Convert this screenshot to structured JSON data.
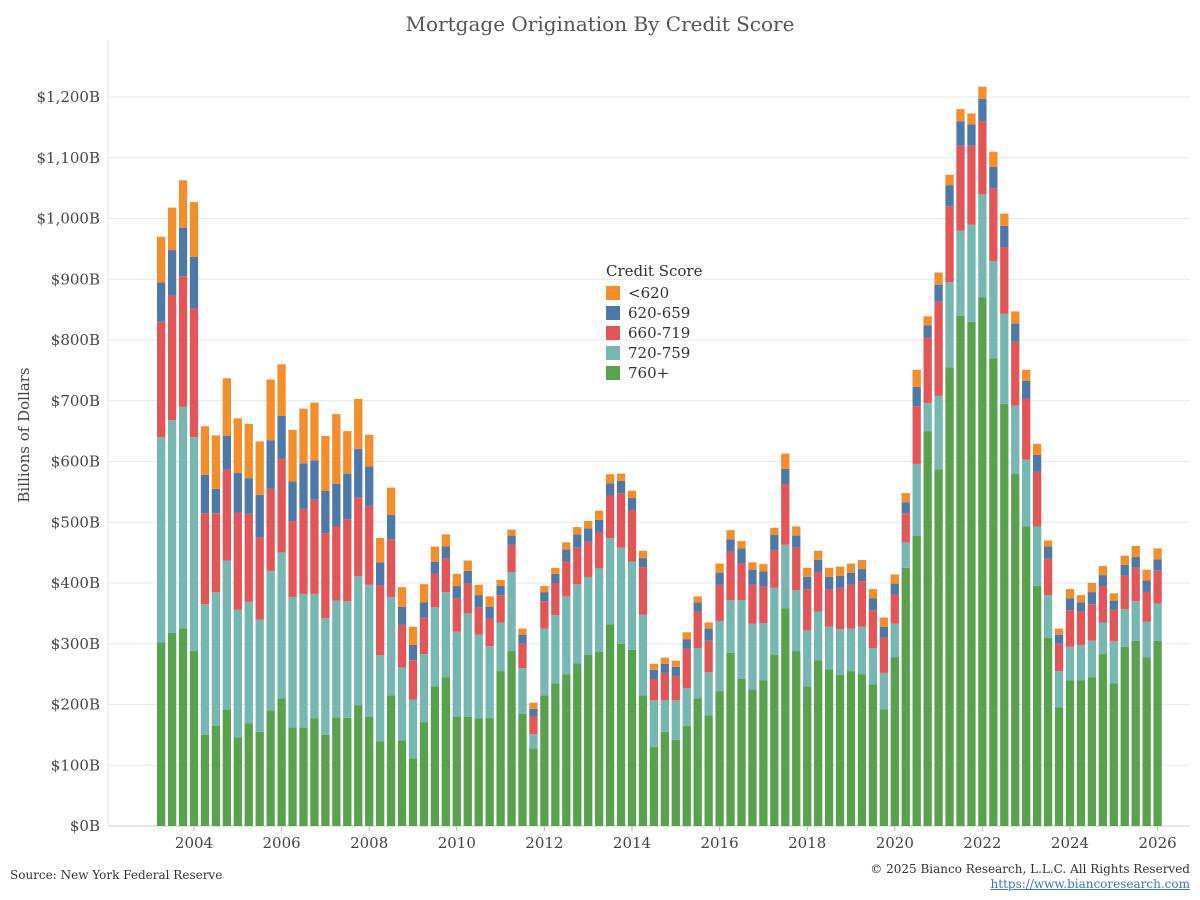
{
  "chart_data": {
    "type": "bar",
    "stacked": true,
    "title": "Mortgage Origination By Credit Score",
    "ylabel": "Billions of Dollars",
    "xlabel": "",
    "ylim": [
      0,
      1300
    ],
    "yticks": [
      0,
      100,
      200,
      300,
      400,
      500,
      600,
      700,
      800,
      900,
      1000,
      1100,
      1200
    ],
    "ytick_labels": [
      "$0B",
      "$100B",
      "$200B",
      "$300B",
      "$400B",
      "$500B",
      "$600B",
      "$700B",
      "$800B",
      "$900B",
      "$1,000B",
      "$1,100B",
      "$1,200B"
    ],
    "x_start_year": 2003.25,
    "x_step_years": 0.25,
    "xticks": [
      "2004",
      "2006",
      "2008",
      "2010",
      "2012",
      "2014",
      "2016",
      "2018",
      "2020",
      "2022",
      "2024",
      "2026"
    ],
    "grid": true,
    "legend": {
      "title": "Credit Score",
      "position": "center",
      "order": [
        "<620",
        "620-659",
        "660-719",
        "720-759",
        "760+"
      ]
    },
    "series": [
      {
        "name": "760+",
        "color": "#59a14f",
        "values": [
          302,
          318,
          325,
          288,
          150,
          165,
          192,
          146,
          169,
          155,
          190,
          210,
          162,
          162,
          177,
          150,
          179,
          178,
          199,
          180,
          139,
          215,
          141,
          111,
          171,
          230,
          245,
          180,
          180,
          177,
          178,
          255,
          288,
          185,
          128,
          215,
          235,
          250,
          268,
          282,
          287,
          332,
          300,
          290,
          215,
          130,
          155,
          142,
          165,
          210,
          182,
          222,
          285,
          242,
          225,
          240,
          282,
          358,
          288,
          230,
          273,
          258,
          249,
          255,
          250,
          233,
          192,
          278,
          425,
          478,
          650,
          587,
          755,
          840,
          830,
          870,
          770,
          695,
          580,
          493,
          395,
          310,
          195,
          240,
          240,
          245,
          283,
          235,
          295,
          305,
          278,
          305
        ]
      },
      {
        "name": "720-759",
        "color": "#76b7b2",
        "values": [
          338,
          350,
          365,
          352,
          215,
          220,
          245,
          210,
          200,
          185,
          230,
          240,
          215,
          220,
          205,
          192,
          192,
          192,
          212,
          217,
          142,
          162,
          120,
          97,
          112,
          130,
          140,
          140,
          170,
          138,
          118,
          80,
          130,
          75,
          23,
          110,
          112,
          128,
          130,
          128,
          137,
          142,
          158,
          145,
          133,
          77,
          52,
          65,
          62,
          83,
          71,
          115,
          87,
          130,
          108,
          94,
          110,
          105,
          100,
          92,
          80,
          70,
          75,
          70,
          78,
          60,
          60,
          55,
          42,
          118,
          46,
          121,
          140,
          140,
          160,
          170,
          160,
          148,
          112,
          110,
          98,
          70,
          60,
          55,
          58,
          60,
          52,
          69,
          62,
          65,
          58,
          61
        ]
      },
      {
        "name": "660-719",
        "color": "#e15759",
        "values": [
          190,
          205,
          215,
          212,
          150,
          130,
          150,
          160,
          145,
          135,
          135,
          155,
          125,
          140,
          155,
          140,
          122,
          135,
          130,
          130,
          115,
          95,
          70,
          65,
          60,
          55,
          55,
          55,
          50,
          45,
          45,
          45,
          45,
          40,
          30,
          45,
          53,
          57,
          60,
          58,
          60,
          70,
          90,
          85,
          78,
          35,
          45,
          40,
          65,
          60,
          52,
          60,
          80,
          60,
          64,
          60,
          62,
          100,
          70,
          68,
          65,
          62,
          68,
          72,
          75,
          62,
          58,
          48,
          48,
          95,
          108,
          155,
          125,
          140,
          130,
          120,
          120,
          110,
          105,
          100,
          90,
          60,
          45,
          60,
          55,
          60,
          60,
          52,
          55,
          55,
          50,
          55
        ]
      },
      {
        "name": "620-659",
        "color": "#4e79a7",
        "values": [
          65,
          75,
          80,
          85,
          63,
          40,
          55,
          65,
          58,
          70,
          80,
          70,
          65,
          75,
          65,
          70,
          70,
          75,
          80,
          65,
          38,
          40,
          30,
          25,
          25,
          20,
          20,
          20,
          20,
          20,
          20,
          15,
          15,
          15,
          12,
          15,
          15,
          20,
          22,
          22,
          20,
          20,
          20,
          20,
          15,
          15,
          15,
          15,
          15,
          15,
          20,
          20,
          20,
          25,
          25,
          25,
          25,
          25,
          20,
          20,
          20,
          20,
          20,
          20,
          20,
          20,
          18,
          18,
          18,
          32,
          20,
          28,
          35,
          40,
          35,
          37,
          35,
          35,
          30,
          30,
          28,
          20,
          15,
          20,
          15,
          20,
          18,
          15,
          18,
          18,
          18,
          18
        ]
      },
      {
        "name": "<620",
        "color": "#f28e2b",
        "values": [
          75,
          70,
          78,
          90,
          80,
          88,
          95,
          90,
          90,
          88,
          100,
          85,
          85,
          90,
          95,
          90,
          115,
          70,
          82,
          52,
          40,
          45,
          32,
          30,
          30,
          25,
          20,
          20,
          17,
          17,
          17,
          10,
          10,
          10,
          10,
          10,
          10,
          12,
          12,
          12,
          15,
          15,
          12,
          12,
          12,
          10,
          10,
          10,
          12,
          10,
          10,
          15,
          15,
          12,
          12,
          12,
          12,
          25,
          15,
          15,
          15,
          15,
          15,
          15,
          15,
          15,
          15,
          15,
          15,
          28,
          15,
          20,
          17,
          20,
          18,
          20,
          25,
          20,
          20,
          18,
          18,
          10,
          10,
          15,
          12,
          15,
          15,
          12,
          15,
          18,
          18,
          18
        ]
      }
    ]
  },
  "footer": {
    "source": "Source: New York Federal Reserve",
    "copyright": "© 2025 Bianco Research, L.L.C. All Rights Reserved",
    "url": "https://www.biancoresearch.com"
  }
}
